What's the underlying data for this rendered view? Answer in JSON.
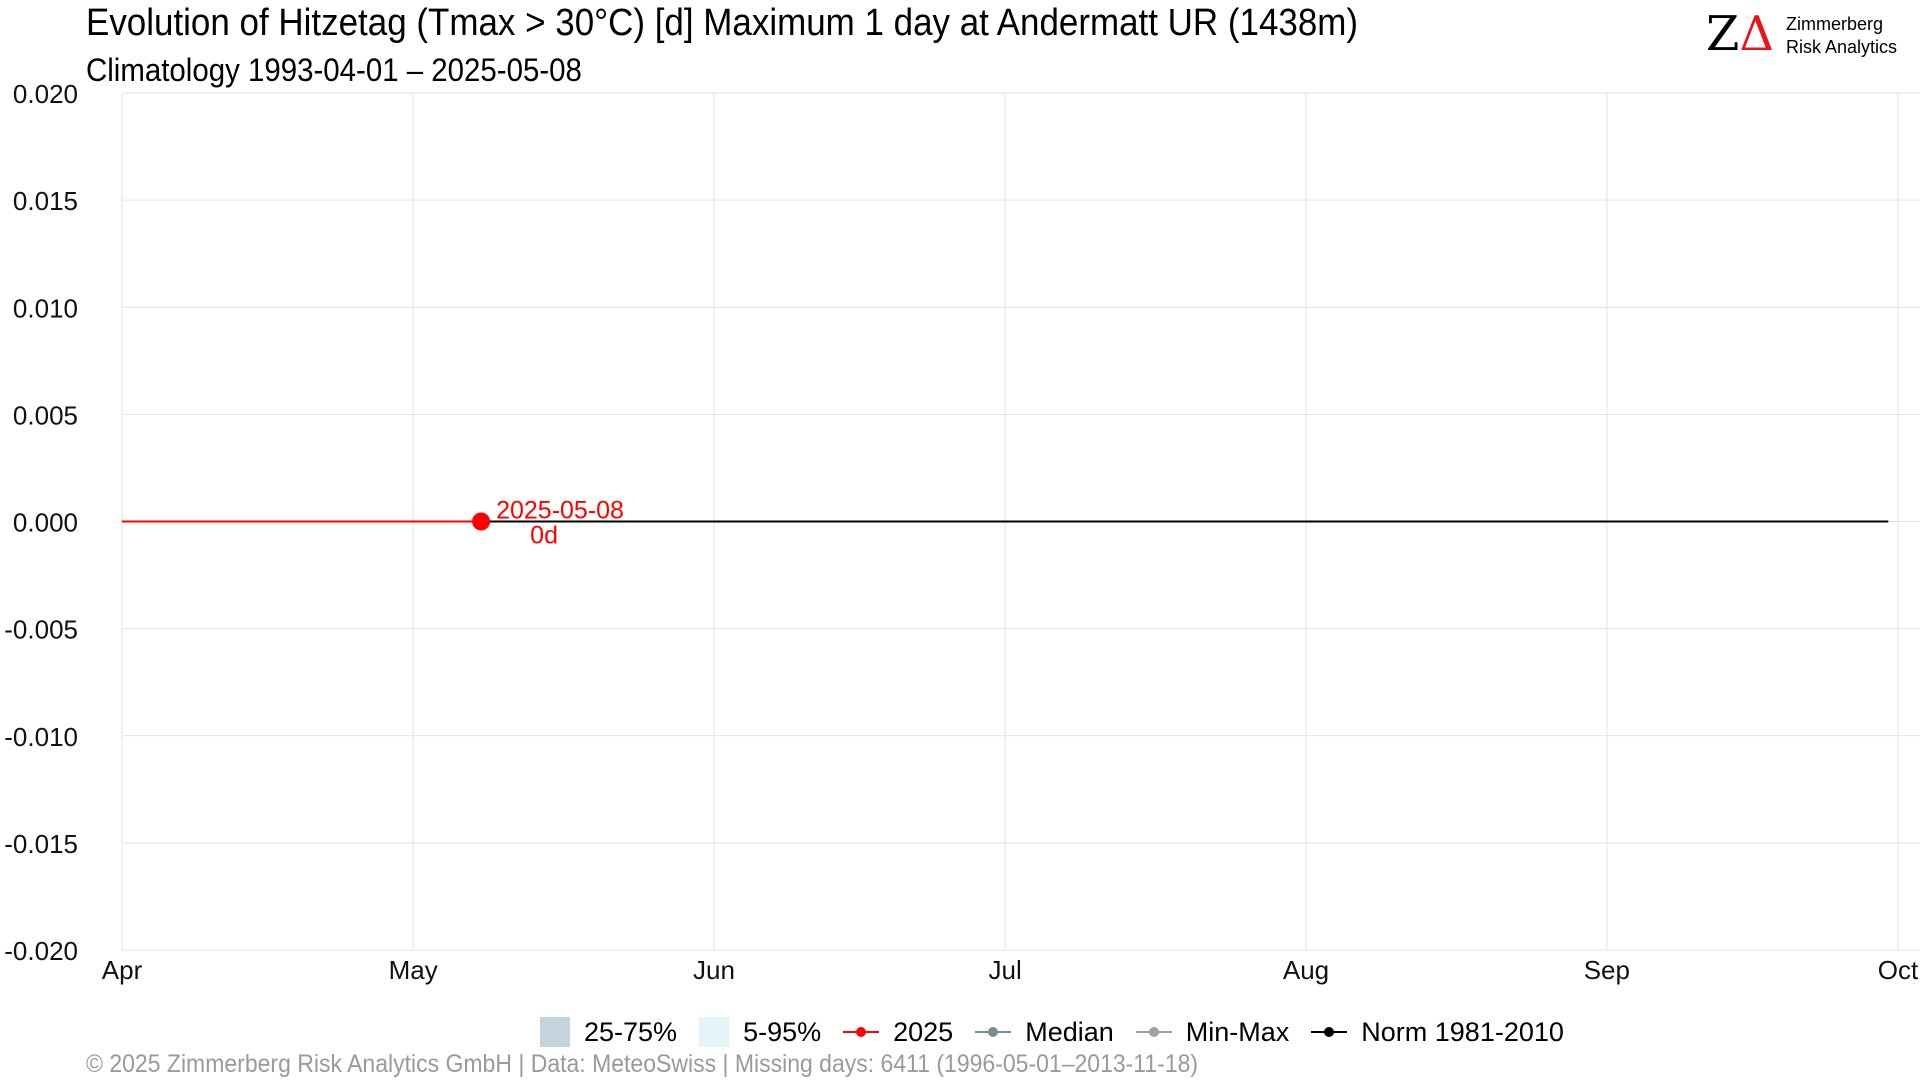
{
  "header": {
    "title": "Evolution of Hitzetag (Tmax > 30°C) [d] Maximum 1 day at Andermatt  UR (1438m)",
    "subtitle": "Climatology 1993-04-01 – 2025-05-08"
  },
  "brand": {
    "mark_z": "Z",
    "mark_delta": "Δ",
    "line1": "Zimmerberg",
    "line2": "Risk Analytics",
    "delta_color": "#e8141b"
  },
  "chart_data": {
    "type": "line",
    "x_ticks": [
      "Apr",
      "May",
      "Jun",
      "Jul",
      "Aug",
      "Sep",
      "Oct"
    ],
    "xlim": [
      "2025-04-01",
      "2025-10-01"
    ],
    "y_ticks": [
      "0.020",
      "0.015",
      "0.010",
      "0.005",
      "0.000",
      "-0.005",
      "-0.010",
      "-0.015",
      "-0.020"
    ],
    "ylim": [
      -0.02,
      0.02
    ],
    "grid": true,
    "series": [
      {
        "name": "2025",
        "color": "#ff0000",
        "x": [
          "2025-04-01",
          "2025-05-08"
        ],
        "y": [
          0,
          0
        ]
      },
      {
        "name": "Norm 1981-2010",
        "color": "#000000",
        "x": [
          "2025-05-08",
          "2025-09-30"
        ],
        "y": [
          0,
          0
        ]
      }
    ],
    "annotation": {
      "x": "2025-05-08",
      "y": 0,
      "date_label": "2025-05-08",
      "value_label": "0d",
      "color": "#ff0000"
    }
  },
  "legend": {
    "items": [
      {
        "kind": "swatch",
        "label": "25-75%",
        "color": "#c4d4dc"
      },
      {
        "kind": "swatch",
        "label": "5-95%",
        "color": "#e2f3fa"
      },
      {
        "kind": "line",
        "label": "2025",
        "color": "#ff0000"
      },
      {
        "kind": "line",
        "label": "Median",
        "color": "#7a8c94"
      },
      {
        "kind": "line",
        "label": "Min-Max",
        "color": "#a0a0a0"
      },
      {
        "kind": "line",
        "label": "Norm 1981-2010",
        "color": "#000000"
      }
    ]
  },
  "footer": {
    "text": "©  2025 Zimmerberg Risk Analytics GmbH | Data: MeteoSwiss | Missing days: 6411 (1996-05-01–2013-11-18)"
  }
}
